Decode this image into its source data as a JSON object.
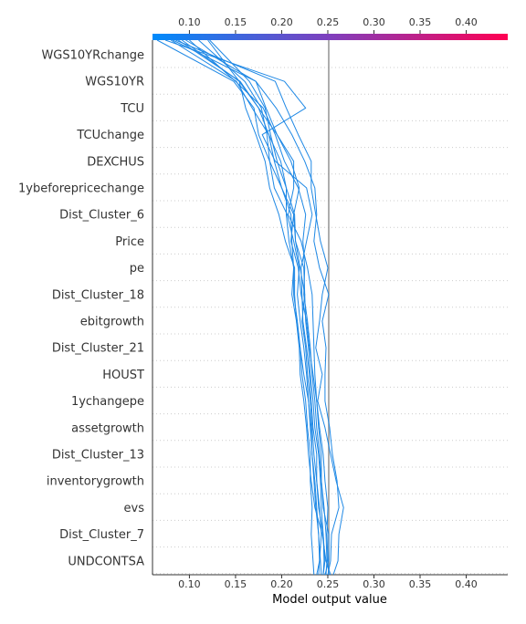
{
  "chart_data": {
    "type": "line",
    "title": "",
    "xlabel": "Model output value",
    "ylabel": "",
    "xlim": [
      0.06,
      0.445
    ],
    "x_ticks": [
      0.1,
      0.15,
      0.2,
      0.25,
      0.3,
      0.35,
      0.4
    ],
    "x_tick_labels": [
      "0.10",
      "0.15",
      "0.20",
      "0.25",
      "0.30",
      "0.35",
      "0.40"
    ],
    "base_value": 0.251,
    "colorbar": {
      "start_color": "#008bfb",
      "mid_color": "#7f3fbd",
      "end_color": "#ff0052"
    },
    "line_color": "#1e88e5",
    "grid": "horizontal dotted",
    "features": [
      "WGS10YRchange",
      "WGS10YR",
      "TCU",
      "TCUchange",
      "DEXCHUS",
      "1ybeforepricechange",
      "Dist_Cluster_6",
      "Price",
      "pe",
      "Dist_Cluster_18",
      "ebitgrowth",
      "Dist_Cluster_21",
      "HOUST",
      "1ychangepe",
      "assetgrowth",
      "Dist_Cluster_13",
      "inventorygrowth",
      "evs",
      "Dist_Cluster_7",
      "UNDCONTSA"
    ],
    "series": [
      {
        "values": [
          0.251,
          0.25,
          0.249,
          0.25,
          0.247,
          0.245,
          0.241,
          0.238,
          0.236,
          0.235,
          0.234,
          0.233,
          0.228,
          0.221,
          0.207,
          0.213,
          0.213,
          0.195,
          0.175,
          0.154,
          0.12
        ]
      },
      {
        "values": [
          0.248,
          0.249,
          0.248,
          0.246,
          0.243,
          0.241,
          0.238,
          0.236,
          0.233,
          0.231,
          0.228,
          0.224,
          0.225,
          0.223,
          0.226,
          0.218,
          0.203,
          0.193,
          0.18,
          0.15,
          0.1
        ]
      },
      {
        "values": [
          0.253,
          0.248,
          0.244,
          0.236,
          0.232,
          0.229,
          0.227,
          0.224,
          0.22,
          0.219,
          0.216,
          0.214,
          0.214,
          0.204,
          0.197,
          0.187,
          0.182,
          0.172,
          0.161,
          0.154,
          0.092
        ]
      },
      {
        "values": [
          0.243,
          0.242,
          0.24,
          0.237,
          0.235,
          0.233,
          0.232,
          0.229,
          0.224,
          0.22,
          0.217,
          0.213,
          0.213,
          0.208,
          0.205,
          0.205,
          0.195,
          0.188,
          0.182,
          0.165,
          0.122
        ]
      },
      {
        "values": [
          0.245,
          0.246,
          0.245,
          0.243,
          0.242,
          0.24,
          0.236,
          0.234,
          0.231,
          0.229,
          0.226,
          0.225,
          0.224,
          0.215,
          0.213,
          0.2,
          0.192,
          0.186,
          0.175,
          0.155,
          0.088
        ]
      },
      {
        "values": [
          0.256,
          0.261,
          0.262,
          0.267,
          0.259,
          0.253,
          0.247,
          0.239,
          0.244,
          0.237,
          0.241,
          0.244,
          0.25,
          0.242,
          0.237,
          0.232,
          0.232,
          0.218,
          0.205,
          0.193,
          0.085
        ]
      },
      {
        "values": [
          0.238,
          0.241,
          0.24,
          0.238,
          0.236,
          0.233,
          0.231,
          0.229,
          0.227,
          0.224,
          0.22,
          0.217,
          0.219,
          0.213,
          0.206,
          0.192,
          0.187,
          0.184,
          0.178,
          0.16,
          0.11
        ]
      },
      {
        "values": [
          0.247,
          0.251,
          0.251,
          0.245,
          0.243,
          0.243,
          0.24,
          0.238,
          0.234,
          0.23,
          0.227,
          0.221,
          0.218,
          0.21,
          0.213,
          0.219,
          0.21,
          0.195,
          0.183,
          0.172,
          0.096
        ]
      },
      {
        "values": [
          0.25,
          0.253,
          0.254,
          0.262,
          0.26,
          0.255,
          0.252,
          0.247,
          0.247,
          0.248,
          0.244,
          0.251,
          0.241,
          0.235,
          0.238,
          0.236,
          0.225,
          0.211,
          0.194,
          0.172,
          0.082
        ]
      },
      {
        "values": [
          0.235,
          0.234,
          0.232,
          0.233,
          0.231,
          0.231,
          0.228,
          0.226,
          0.222,
          0.22,
          0.216,
          0.211,
          0.213,
          0.211,
          0.21,
          0.2,
          0.187,
          0.175,
          0.17,
          0.148,
          0.065
        ]
      },
      {
        "values": [
          0.24,
          0.241,
          0.243,
          0.241,
          0.238,
          0.238,
          0.234,
          0.232,
          0.23,
          0.227,
          0.223,
          0.222,
          0.221,
          0.227,
          0.233,
          0.227,
          0.193,
          0.179,
          0.226,
          0.203,
          0.074
        ]
      },
      {
        "values": [
          0.245,
          0.247,
          0.245,
          0.24,
          0.238,
          0.235,
          0.233,
          0.231,
          0.228,
          0.226,
          0.222,
          0.225,
          0.22,
          0.215,
          0.214,
          0.205,
          0.199,
          0.186,
          0.168,
          0.151,
          0.08
        ]
      }
    ]
  }
}
